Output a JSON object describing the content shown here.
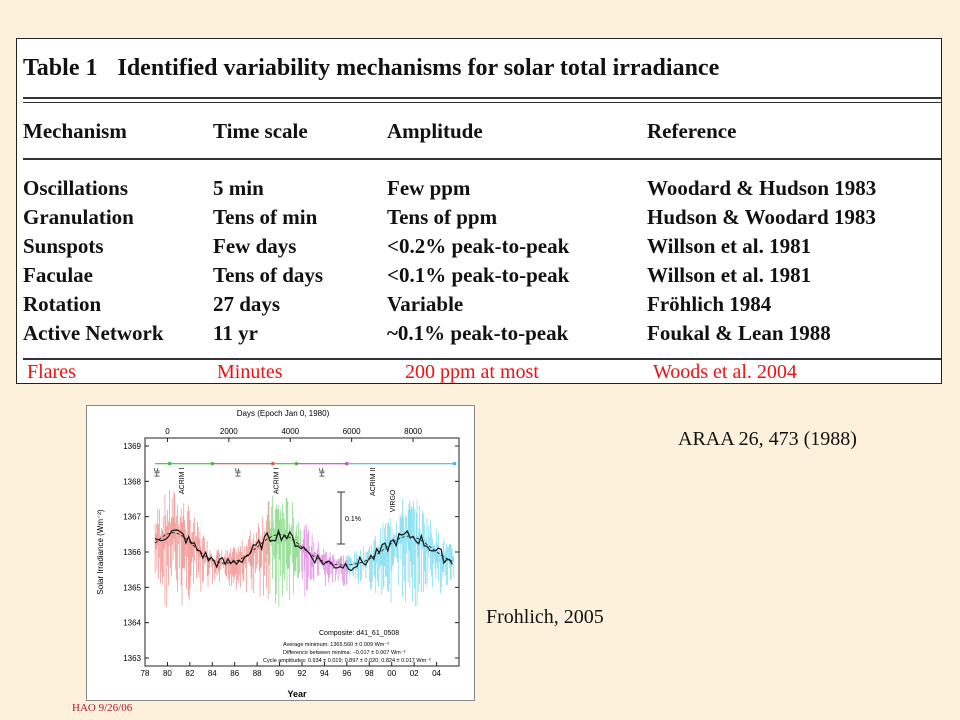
{
  "table": {
    "label": "Table 1",
    "title": "Identified variability mechanisms for solar total irradiance",
    "headers": [
      "Mechanism",
      "Time scale",
      "Amplitude",
      "Reference"
    ],
    "rows": [
      [
        "Oscillations",
        "5 min",
        "Few ppm",
        "Woodard & Hudson 1983"
      ],
      [
        "Granulation",
        "Tens of min",
        "Tens of ppm",
        "Hudson & Woodard 1983"
      ],
      [
        "Sunspots",
        "Few days",
        "<0.2% peak-to-peak",
        "Willson et al. 1981"
      ],
      [
        "Faculae",
        "Tens of days",
        "<0.1% peak-to-peak",
        "Willson et al. 1981"
      ],
      [
        "Rotation",
        "27 days",
        "Variable",
        "Fröhlich 1984"
      ],
      [
        "Active Network",
        "11 yr",
        "~0.1% peak-to-peak",
        "Foukal & Lean 1988"
      ]
    ],
    "added_row": [
      "Flares",
      "Minutes",
      "200 ppm at most",
      "Woods et al. 2004"
    ]
  },
  "citations": {
    "table_source": "ARAA 26, 473 (1988)",
    "figure_source": "Frohlich, 2005"
  },
  "footer": "HAO 9/26/06",
  "figure": {
    "top_axis_label": "Days (Epoch Jan 0, 1980)",
    "top_ticks": [
      "0",
      "2000",
      "4000",
      "6000",
      "8000"
    ],
    "x_label": "Year",
    "x_ticks": [
      "78",
      "80",
      "82",
      "84",
      "86",
      "88",
      "90",
      "92",
      "94",
      "96",
      "98",
      "00",
      "02",
      "04"
    ],
    "y_label": "Solar Irradiance (Wm⁻²)",
    "y_ticks": [
      "1369",
      "1368",
      "1367",
      "1366",
      "1365",
      "1364",
      "1363"
    ],
    "instruments": [
      "HF",
      "ACRIM I",
      "HF",
      "ACRIM I",
      "HF",
      "ACRIM II",
      "VIRGO"
    ],
    "scale_bar_label": "0.1%",
    "composite_label": "Composite: d41_61_0508",
    "stats": [
      "Average minimum: 1365.560 ± 0.009 Wm⁻²",
      "Difference between minima: −0.017 ± 0.007 Wm⁻²",
      "Cycle amplitudes: 0.934 ± 0.019; 0.897 ± 0.020; 0.824 ± 0.017 Wm⁻²"
    ],
    "colors": {
      "red": "#e8504a",
      "green": "#3cc43c",
      "magenta": "#d040d0",
      "cyan": "#28c8e8",
      "black": "#111111"
    }
  }
}
